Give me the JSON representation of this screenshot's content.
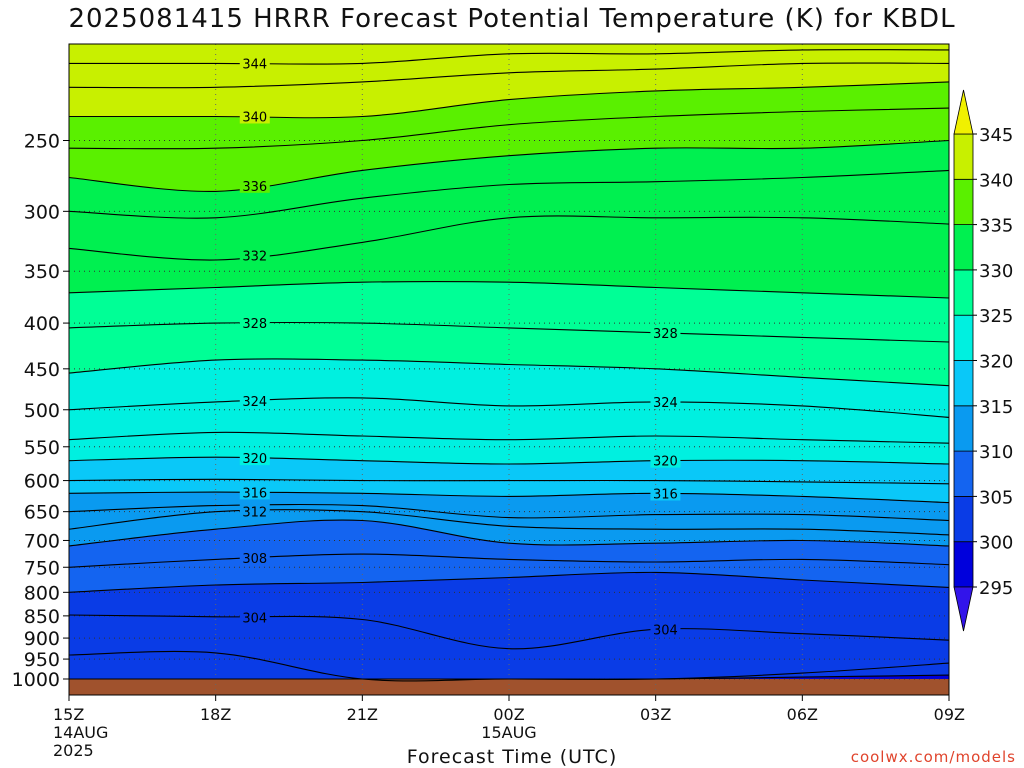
{
  "chart_data": {
    "type": "heatmap",
    "title": "2025081415 HRRR Forecast Potential Temperature (K) for KBDL",
    "xlabel": "Forecast Time (UTC)",
    "ylabel": "",
    "credit": "coolwx.com/models",
    "y_scale": "log-pressure",
    "y_axis_reversed": true,
    "ylim": [
      1000,
      195
    ],
    "y_ticks": [
      1000,
      950,
      900,
      850,
      800,
      750,
      700,
      650,
      600,
      550,
      500,
      450,
      400,
      350,
      300,
      250
    ],
    "y_tick_labels": [
      "1000",
      "950",
      "900",
      "850",
      "800",
      "750",
      "700",
      "650",
      "600",
      "550",
      "500",
      "450",
      "400",
      "350",
      "300",
      "250"
    ],
    "x_hours": [
      0,
      3,
      6,
      9,
      12,
      15,
      18
    ],
    "x_tick_labels": [
      [
        "15Z",
        "14AUG",
        "2025"
      ],
      [
        "18Z"
      ],
      [
        "21Z"
      ],
      [
        "00Z",
        "15AUG"
      ],
      [
        "03Z"
      ],
      [
        "06Z"
      ],
      [
        "09Z"
      ]
    ],
    "colorbar": {
      "levels": [
        295,
        300,
        305,
        310,
        315,
        320,
        325,
        330,
        335,
        340,
        345
      ],
      "labels": [
        "295",
        "300",
        "305",
        "310",
        "315",
        "320",
        "325",
        "330",
        "335",
        "340",
        "345"
      ],
      "colors": [
        "#3214ea",
        "#0000dc",
        "#0a3ce6",
        "#1464f0",
        "#0a9af0",
        "#0ac8f8",
        "#00f0e0",
        "#00ff96",
        "#00f050",
        "#5af000",
        "#c8f000",
        "#f0f000"
      ]
    },
    "surface_color": "#a0522d",
    "contour_labels": [
      {
        "text": "344",
        "value": 344
      },
      {
        "text": "340",
        "value": 340
      },
      {
        "text": "336",
        "value": 336
      },
      {
        "text": "332",
        "value": 332
      },
      {
        "text": "328",
        "value": 328
      },
      {
        "text": "328",
        "value": 328
      },
      {
        "text": "324",
        "value": 324
      },
      {
        "text": "324",
        "value": 324
      },
      {
        "text": "320",
        "value": 320
      },
      {
        "text": "320",
        "value": 320
      },
      {
        "text": "316",
        "value": 316
      },
      {
        "text": "316",
        "value": 316
      },
      {
        "text": "312",
        "value": 312
      },
      {
        "text": "308",
        "value": 308
      },
      {
        "text": "304",
        "value": 304
      },
      {
        "text": "304",
        "value": 304
      }
    ],
    "isentropes_K": [
      {
        "theta": 300,
        "pressure": [
          1000,
          1000,
          1000,
          1000,
          1000,
          995,
          990
        ],
        "note": "near-surface cold pocket"
      },
      {
        "theta": 302,
        "pressure": [
          940,
          935,
          1000,
          1000,
          1000,
          985,
          960
        ]
      },
      {
        "theta": 304,
        "pressure": [
          848,
          852,
          858,
          925,
          880,
          890,
          905
        ]
      },
      {
        "theta": 306,
        "pressure": [
          800,
          785,
          780,
          770,
          760,
          775,
          790
        ]
      },
      {
        "theta": 308,
        "pressure": [
          750,
          735,
          725,
          735,
          740,
          735,
          745
        ]
      },
      {
        "theta": 310,
        "pressure": [
          710,
          680,
          665,
          705,
          705,
          700,
          710
        ]
      },
      {
        "theta": 312,
        "pressure": [
          680,
          650,
          650,
          675,
          680,
          680,
          690
        ]
      },
      {
        "theta": 314,
        "pressure": [
          650,
          640,
          640,
          660,
          655,
          655,
          665
        ]
      },
      {
        "theta": 316,
        "pressure": [
          620,
          618,
          620,
          625,
          620,
          625,
          635
        ]
      },
      {
        "theta": 318,
        "pressure": [
          600,
          598,
          600,
          600,
          600,
          602,
          605
        ]
      },
      {
        "theta": 320,
        "pressure": [
          570,
          565,
          570,
          575,
          570,
          570,
          575
        ]
      },
      {
        "theta": 322,
        "pressure": [
          540,
          530,
          535,
          540,
          535,
          540,
          545
        ]
      },
      {
        "theta": 324,
        "pressure": [
          500,
          490,
          485,
          495,
          490,
          495,
          510
        ]
      },
      {
        "theta": 326,
        "pressure": [
          455,
          440,
          440,
          445,
          450,
          460,
          470
        ]
      },
      {
        "theta": 328,
        "pressure": [
          405,
          400,
          400,
          405,
          410,
          415,
          420
        ]
      },
      {
        "theta": 330,
        "pressure": [
          370,
          365,
          360,
          360,
          365,
          370,
          375
        ]
      },
      {
        "theta": 332,
        "pressure": [
          330,
          340,
          325,
          305,
          305,
          305,
          310
        ]
      },
      {
        "theta": 334,
        "pressure": [
          300,
          305,
          290,
          280,
          278,
          275,
          270
        ]
      },
      {
        "theta": 336,
        "pressure": [
          275,
          285,
          270,
          260,
          255,
          255,
          250
        ]
      },
      {
        "theta": 338,
        "pressure": [
          255,
          255,
          250,
          240,
          235,
          232,
          230
        ]
      },
      {
        "theta": 340,
        "pressure": [
          235,
          235,
          235,
          225,
          220,
          218,
          215
        ]
      },
      {
        "theta": 342,
        "pressure": [
          218,
          218,
          215,
          210,
          208,
          205,
          205
        ]
      },
      {
        "theta": 344,
        "pressure": [
          205,
          205,
          205,
          200,
          200,
          198,
          198
        ]
      }
    ]
  }
}
